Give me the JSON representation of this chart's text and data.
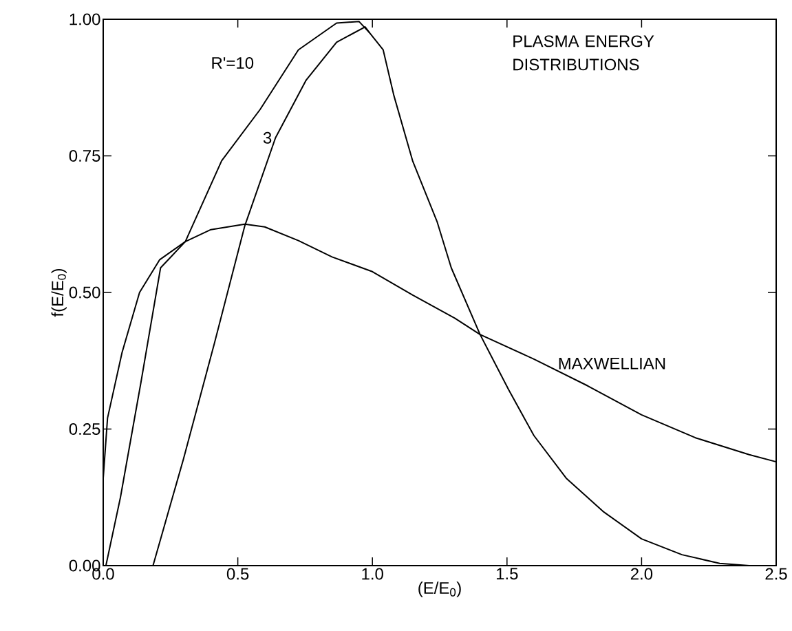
{
  "chart_data": {
    "type": "line",
    "title": "PLASMA ENERGY DISTRIBUTIONS",
    "xlabel": "(E/E$_{0}$)",
    "ylabel": "f(E/E$_{0}$)",
    "xlim": [
      0,
      2.5
    ],
    "ylim": [
      0,
      1
    ],
    "xticks": [
      {
        "value": 0,
        "label": "0.0"
      },
      0.5,
      {
        "value": 1,
        "label": "1.0"
      },
      1.5,
      {
        "value": 2,
        "label": "2.0"
      },
      2.5
    ],
    "yticks": [
      {
        "value": 0,
        "label": "0.00"
      },
      0.25,
      {
        "value": 0.5,
        "label": "0.50"
      },
      0.75,
      {
        "value": 1,
        "label": "1.00"
      }
    ],
    "series": [
      {
        "name": "R'=10",
        "color": "#000000",
        "x": [
          0.01,
          0.064,
          0.14,
          0.213,
          0.305,
          0.44,
          0.583,
          0.725,
          0.867,
          0.95,
          0.99,
          1.04,
          1.08,
          1.15,
          1.24,
          1.293,
          1.4,
          1.506,
          1.6,
          1.72,
          1.86,
          2.0,
          2.15,
          2.29,
          2.4
        ],
        "values": [
          0,
          0.125,
          0.335,
          0.545,
          0.593,
          0.741,
          0.835,
          0.944,
          0.993,
          0.996,
          0.975,
          0.944,
          0.86,
          0.74,
          0.63,
          0.545,
          0.423,
          0.322,
          0.238,
          0.16,
          0.098,
          0.049,
          0.02,
          0.004,
          0
        ]
      },
      {
        "name": "3",
        "color": "#000000",
        "x": [
          0.185,
          0.298,
          0.412,
          0.526,
          0.64,
          0.753,
          0.867,
          0.973,
          0.99
        ],
        "values": [
          0,
          0.195,
          0.405,
          0.622,
          0.783,
          0.888,
          0.958,
          0.986,
          0.975
        ]
      },
      {
        "name": "MAXWELLIAN",
        "color": "#000000",
        "x": [
          0,
          0.016,
          0.07,
          0.135,
          0.21,
          0.305,
          0.4,
          0.526,
          0.6,
          0.725,
          0.85,
          1.0,
          1.15,
          1.306,
          1.4,
          1.6,
          1.8,
          2.0,
          2.2,
          2.4,
          2.5
        ],
        "values": [
          0.16,
          0.27,
          0.39,
          0.5,
          0.56,
          0.593,
          0.615,
          0.625,
          0.62,
          0.595,
          0.565,
          0.538,
          0.495,
          0.453,
          0.423,
          0.378,
          0.329,
          0.276,
          0.234,
          0.203,
          0.19
        ]
      }
    ],
    "marker": "none",
    "line_style": "solid"
  }
}
